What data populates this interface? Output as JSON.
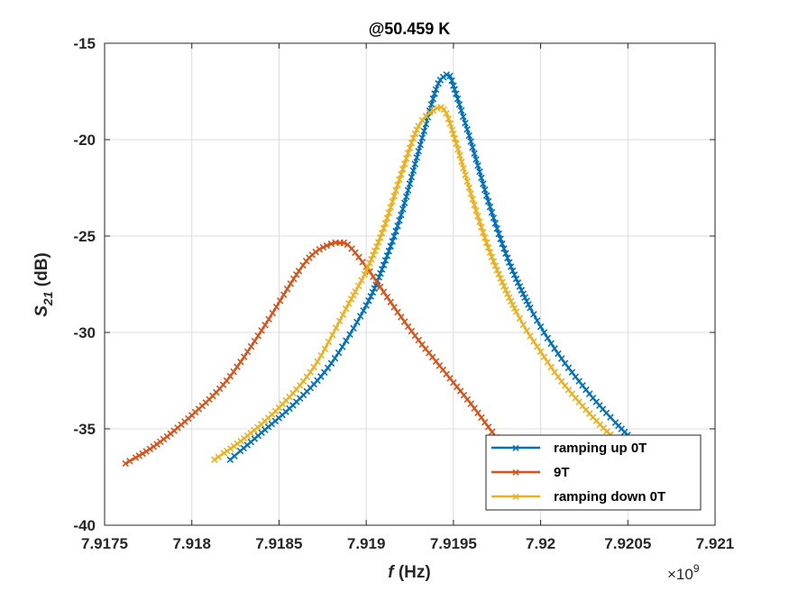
{
  "chart_data": {
    "type": "line",
    "title": "@50.459 K",
    "xlabel_italic": "f",
    "xlabel_rest": " (Hz)",
    "ylabel_main": "S",
    "ylabel_sub": "21",
    "ylabel_rest": " (dB)",
    "x_exponent_base": "×10",
    "x_exponent_power": "9",
    "xlim": [
      7.9175,
      7.921
    ],
    "ylim": [
      -40,
      -15
    ],
    "xticks": [
      7.9175,
      7.918,
      7.9185,
      7.919,
      7.9195,
      7.92,
      7.9205,
      7.921
    ],
    "xtick_labels": [
      "7.9175",
      "7.918",
      "7.9185",
      "7.919",
      "7.9195",
      "7.92",
      "7.9205",
      "7.921"
    ],
    "yticks": [
      -40,
      -35,
      -30,
      -25,
      -20,
      -15
    ],
    "ytick_labels": [
      "-40",
      "-35",
      "-30",
      "-25",
      "-20",
      "-15"
    ],
    "grid": true,
    "legend_position": "bottom-right",
    "marker": "x",
    "series": [
      {
        "name": "ramping up 0T",
        "color": "#0072BD",
        "x": [
          7.91822,
          7.9184,
          7.9186,
          7.9188,
          7.919,
          7.9191,
          7.9192,
          7.9193,
          7.9194,
          7.91945,
          7.91948,
          7.9195,
          7.9196,
          7.9197,
          7.9198,
          7.9199,
          7.92,
          7.9201,
          7.9202,
          7.9203,
          7.9204,
          7.92055
        ],
        "y": [
          -36.6,
          -35.2,
          -33.6,
          -31.6,
          -28.6,
          -26.5,
          -23.9,
          -20.6,
          -17.4,
          -16.7,
          -16.7,
          -17.2,
          -20.1,
          -23.2,
          -25.9,
          -28.0,
          -29.7,
          -31.1,
          -32.3,
          -33.4,
          -34.4,
          -35.8
        ]
      },
      {
        "name": "9T",
        "color": "#D95319",
        "x": [
          7.91762,
          7.9178,
          7.918,
          7.9182,
          7.9184,
          7.9186,
          7.9187,
          7.9188,
          7.91885,
          7.9189,
          7.919,
          7.9191,
          7.9192,
          7.9193,
          7.9194,
          7.9195,
          7.9196,
          7.9197,
          7.9198
        ],
        "y": [
          -36.8,
          -35.8,
          -34.3,
          -32.5,
          -29.9,
          -27.0,
          -25.9,
          -25.4,
          -25.35,
          -25.5,
          -26.6,
          -27.9,
          -29.2,
          -30.4,
          -31.5,
          -32.6,
          -33.7,
          -34.9,
          -36.1
        ]
      },
      {
        "name": "ramping down 0T",
        "color": "#EDB120",
        "x": [
          7.91813,
          7.9183,
          7.9185,
          7.9187,
          7.9189,
          7.919,
          7.9191,
          7.9192,
          7.9193,
          7.9194,
          7.91945,
          7.9195,
          7.9196,
          7.9197,
          7.9198,
          7.9199,
          7.92,
          7.9201,
          7.9202,
          7.9203,
          7.9204,
          7.9205
        ],
        "y": [
          -36.6,
          -35.5,
          -33.9,
          -31.8,
          -28.5,
          -26.8,
          -24.6,
          -21.8,
          -19.3,
          -18.4,
          -18.5,
          -19.7,
          -22.8,
          -25.6,
          -27.8,
          -29.6,
          -31.0,
          -32.3,
          -33.4,
          -34.4,
          -35.3,
          -36.0
        ]
      }
    ]
  }
}
